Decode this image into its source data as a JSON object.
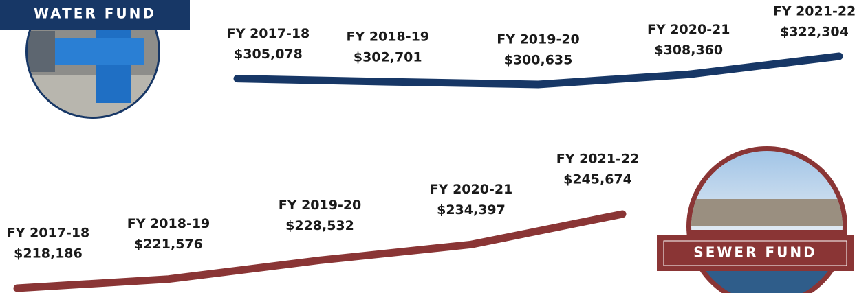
{
  "chart_data": [
    {
      "type": "line",
      "title": "WATER FUND",
      "color": "#173766",
      "categories": [
        "FY 2017-18",
        "FY 2018-19",
        "FY 2019-20",
        "FY 2020-21",
        "FY 2021-22"
      ],
      "values": [
        305078,
        302701,
        300635,
        308360,
        322304
      ],
      "value_labels": [
        "$305,078",
        "$302,701",
        "$300,635",
        "$308,360",
        "$322,304"
      ]
    },
    {
      "type": "line",
      "title": "SEWER FUND",
      "color": "#8a3535",
      "categories": [
        "FY 2017-18",
        "FY 2018-19",
        "FY 2019-20",
        "FY 2020-21",
        "FY 2021-22"
      ],
      "values": [
        218186,
        221576,
        228532,
        234397,
        245674
      ],
      "value_labels": [
        "$218,186",
        "$221,576",
        "$228,532",
        "$234,397",
        "$245,674"
      ]
    }
  ]
}
